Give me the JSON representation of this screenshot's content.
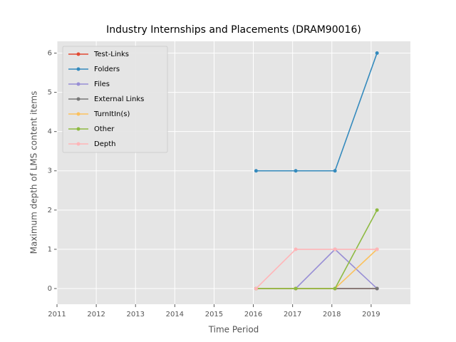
{
  "chart_data": {
    "type": "line",
    "title": "Industry Internships and Placements (DRAM90016)",
    "x_label": "Time Period",
    "y_label": "Maximum depth of LMS content items",
    "x": [
      2016.07,
      2017.08,
      2018.08,
      2019.15
    ],
    "series": [
      {
        "name": "Test-Links",
        "color": "#E24A33",
        "values": [
          0,
          0,
          0,
          0
        ]
      },
      {
        "name": "Folders",
        "color": "#348ABD",
        "values": [
          3,
          3,
          3,
          6
        ]
      },
      {
        "name": "Files",
        "color": "#988ED5",
        "values": [
          0,
          0,
          1,
          0
        ]
      },
      {
        "name": "External Links",
        "color": "#777777",
        "values": [
          0,
          0,
          0,
          0
        ]
      },
      {
        "name": "TurnItIn(s)",
        "color": "#FBC15E",
        "values": [
          0,
          0,
          0,
          1
        ]
      },
      {
        "name": "Other",
        "color": "#8EBA42",
        "values": [
          0,
          0,
          0,
          2
        ]
      },
      {
        "name": "Depth",
        "color": "#FFB5B8",
        "values": [
          0,
          1,
          1,
          1
        ]
      }
    ],
    "xlim": [
      2011,
      2020
    ],
    "xticks": [
      2011,
      2012,
      2013,
      2014,
      2015,
      2016,
      2017,
      2018,
      2019
    ],
    "ylim": [
      -0.4,
      6.3
    ],
    "yticks": [
      0,
      1,
      2,
      3,
      4,
      5,
      6
    ],
    "grid": true,
    "legend": "upper-left"
  }
}
